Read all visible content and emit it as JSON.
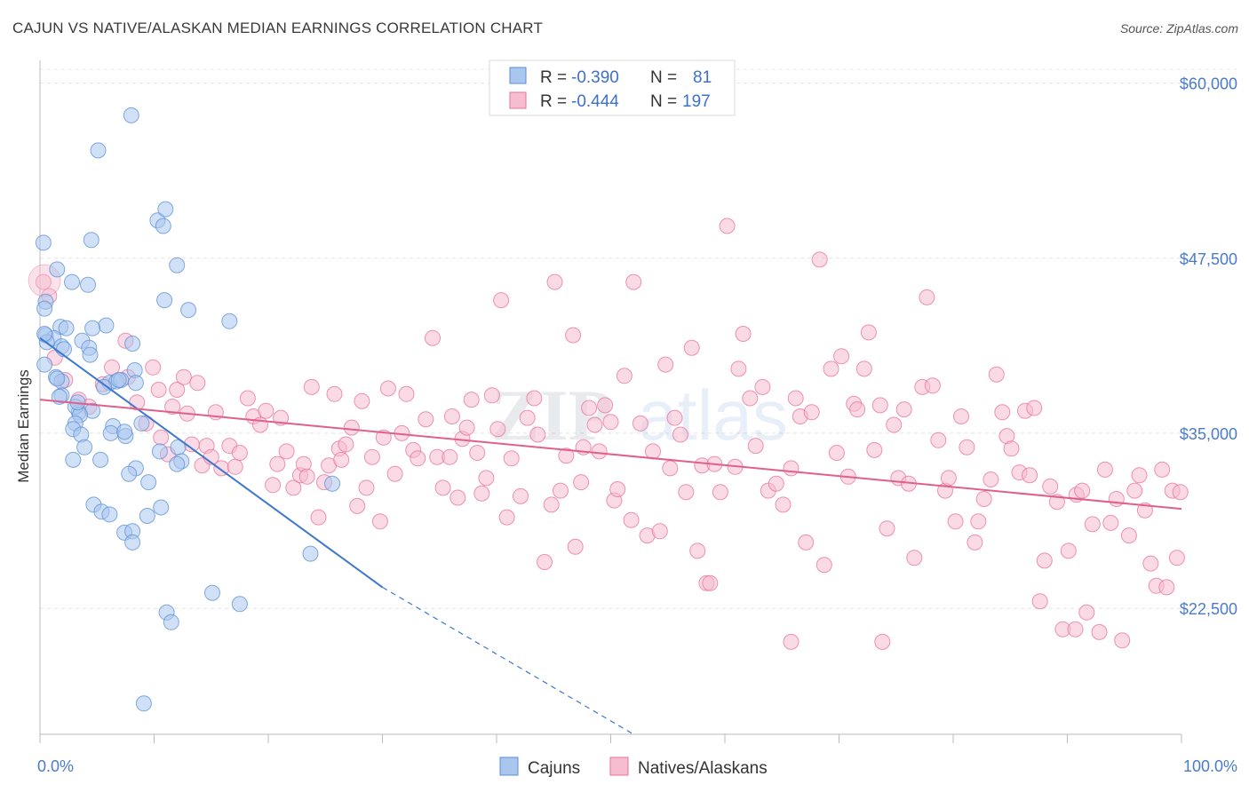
{
  "title": "CAJUN VS NATIVE/ALASKAN MEDIAN EARNINGS CORRELATION CHART",
  "source": "Source: ZipAtlas.com",
  "watermark": {
    "zip": "ZIP",
    "atlas": "atlas"
  },
  "colors": {
    "cajuns": "#5b8fd6",
    "cajuns_fill": "#a9c6ee",
    "natives": "#e8729a",
    "natives_fill": "#f6bcd0",
    "tick_text": "#4a7bcb"
  },
  "legend": {
    "r_label": "R =",
    "n_label": "N =",
    "rows": [
      {
        "r": "-0.390",
        "n": "81"
      },
      {
        "r": "-0.444",
        "n": "197"
      }
    ]
  },
  "bottom_legend": [
    "Cajuns",
    "Natives/Alaskans"
  ],
  "chart_data": {
    "type": "scatter",
    "title": "CAJUN VS NATIVE/ALASKAN MEDIAN EARNINGS CORRELATION CHART",
    "xlabel": "",
    "ylabel": "Median Earnings",
    "x_tick_labels": [
      "0.0%",
      "100.0%"
    ],
    "y_tick_labels": [
      "$60,000",
      "$47,500",
      "$35,000",
      "$22,500"
    ],
    "y_ticks": [
      60000,
      47500,
      35000,
      22500
    ],
    "xlim": [
      0,
      100
    ],
    "ylim": [
      13500,
      61500
    ],
    "grid": true,
    "legend_position": "top-center",
    "series": [
      {
        "name": "Cajuns",
        "r": -0.39,
        "n": 81,
        "trend": {
          "x": [
            0,
            30
          ],
          "y": [
            41800,
            24000
          ],
          "dashed_to": [
            52,
            13500
          ]
        },
        "points": [
          [
            8.0,
            57700
          ],
          [
            5.1,
            55200
          ],
          [
            0.3,
            48600
          ],
          [
            4.5,
            48800
          ],
          [
            10.3,
            50200
          ],
          [
            10.8,
            49800
          ],
          [
            11.0,
            51000
          ],
          [
            12.0,
            47000
          ],
          [
            1.5,
            46700
          ],
          [
            2.8,
            45800
          ],
          [
            4.2,
            45600
          ],
          [
            0.5,
            44400
          ],
          [
            0.4,
            43900
          ],
          [
            10.9,
            44500
          ],
          [
            13.0,
            43800
          ],
          [
            16.6,
            43000
          ],
          [
            0.5,
            42000
          ],
          [
            1.8,
            42600
          ],
          [
            2.3,
            42500
          ],
          [
            5.8,
            42700
          ],
          [
            4.6,
            42500
          ],
          [
            1.2,
            41800
          ],
          [
            0.6,
            41500
          ],
          [
            1.9,
            41200
          ],
          [
            3.7,
            41600
          ],
          [
            4.3,
            41100
          ],
          [
            8.1,
            41400
          ],
          [
            4.4,
            40600
          ],
          [
            0.4,
            39900
          ],
          [
            8.3,
            39500
          ],
          [
            1.4,
            39000
          ],
          [
            1.9,
            38700
          ],
          [
            6.1,
            38600
          ],
          [
            6.7,
            38700
          ],
          [
            7.1,
            38800
          ],
          [
            8.4,
            38600
          ],
          [
            5.6,
            38300
          ],
          [
            1.9,
            37700
          ],
          [
            1.7,
            37600
          ],
          [
            3.4,
            36500
          ],
          [
            3.1,
            36900
          ],
          [
            4.6,
            36600
          ],
          [
            3.5,
            36300
          ],
          [
            3.1,
            35700
          ],
          [
            2.9,
            35300
          ],
          [
            6.4,
            35500
          ],
          [
            6.2,
            35000
          ],
          [
            7.5,
            34800
          ],
          [
            8.9,
            35700
          ],
          [
            3.6,
            34900
          ],
          [
            3.9,
            34000
          ],
          [
            12.1,
            34000
          ],
          [
            2.9,
            33100
          ],
          [
            5.3,
            33100
          ],
          [
            12.4,
            33000
          ],
          [
            12.0,
            32800
          ],
          [
            8.4,
            32500
          ],
          [
            7.8,
            32100
          ],
          [
            9.5,
            31500
          ],
          [
            25.6,
            31400
          ],
          [
            4.7,
            29900
          ],
          [
            5.4,
            29400
          ],
          [
            6.1,
            29200
          ],
          [
            10.6,
            29700
          ],
          [
            9.4,
            29100
          ],
          [
            7.4,
            27900
          ],
          [
            8.1,
            28000
          ],
          [
            8.1,
            27200
          ],
          [
            23.7,
            26400
          ],
          [
            15.1,
            23600
          ],
          [
            17.5,
            22800
          ],
          [
            11.1,
            22200
          ],
          [
            11.5,
            21500
          ],
          [
            9.1,
            15700
          ],
          [
            0.4,
            42100
          ],
          [
            2.1,
            41000
          ],
          [
            6.9,
            38800
          ],
          [
            3.3,
            37200
          ],
          [
            1.5,
            38900
          ],
          [
            10.5,
            33700
          ],
          [
            7.4,
            35100
          ]
        ]
      },
      {
        "name": "Natives/Alaskans",
        "r": -0.444,
        "n": 197,
        "trend": {
          "x": [
            0,
            100
          ],
          "y": [
            37400,
            29600
          ]
        },
        "points": [
          [
            0.3,
            45800
          ],
          [
            0.8,
            44800
          ],
          [
            1.3,
            40400
          ],
          [
            2.2,
            38800
          ],
          [
            3.4,
            37400
          ],
          [
            4.3,
            36900
          ],
          [
            5.5,
            38500
          ],
          [
            6.3,
            39700
          ],
          [
            7.5,
            41600
          ],
          [
            7.7,
            39000
          ],
          [
            8.5,
            37200
          ],
          [
            9.3,
            35700
          ],
          [
            9.9,
            39700
          ],
          [
            10.4,
            38100
          ],
          [
            10.6,
            34700
          ],
          [
            11.2,
            33500
          ],
          [
            11.6,
            36900
          ],
          [
            12.0,
            38100
          ],
          [
            12.6,
            39000
          ],
          [
            12.9,
            36400
          ],
          [
            13.3,
            34200
          ],
          [
            13.8,
            38600
          ],
          [
            14.2,
            32700
          ],
          [
            14.6,
            34100
          ],
          [
            15.0,
            33300
          ],
          [
            15.4,
            36500
          ],
          [
            15.9,
            32500
          ],
          [
            16.6,
            34100
          ],
          [
            17.1,
            32600
          ],
          [
            17.5,
            33600
          ],
          [
            18.2,
            37500
          ],
          [
            18.7,
            36200
          ],
          [
            19.3,
            35600
          ],
          [
            19.8,
            36600
          ],
          [
            20.4,
            31300
          ],
          [
            20.8,
            32800
          ],
          [
            21.1,
            36100
          ],
          [
            21.6,
            33700
          ],
          [
            22.2,
            31100
          ],
          [
            22.8,
            32000
          ],
          [
            23.1,
            32800
          ],
          [
            23.4,
            31900
          ],
          [
            23.8,
            38300
          ],
          [
            24.4,
            29000
          ],
          [
            24.9,
            31500
          ],
          [
            25.3,
            32700
          ],
          [
            25.8,
            37800
          ],
          [
            26.2,
            33900
          ],
          [
            26.4,
            33100
          ],
          [
            26.8,
            34200
          ],
          [
            27.3,
            35400
          ],
          [
            27.8,
            29800
          ],
          [
            28.2,
            37300
          ],
          [
            28.6,
            31100
          ],
          [
            29.1,
            33300
          ],
          [
            29.8,
            28700
          ],
          [
            30.1,
            34700
          ],
          [
            30.5,
            38200
          ],
          [
            31.1,
            32100
          ],
          [
            31.7,
            35000
          ],
          [
            32.1,
            37800
          ],
          [
            32.7,
            33800
          ],
          [
            33.1,
            33200
          ],
          [
            33.8,
            36000
          ],
          [
            34.4,
            41800
          ],
          [
            34.8,
            33300
          ],
          [
            35.3,
            31100
          ],
          [
            35.9,
            33300
          ],
          [
            36.1,
            36200
          ],
          [
            36.6,
            30400
          ],
          [
            37.0,
            34600
          ],
          [
            37.4,
            35400
          ],
          [
            37.8,
            37400
          ],
          [
            38.3,
            33600
          ],
          [
            38.7,
            30700
          ],
          [
            39.1,
            31800
          ],
          [
            39.6,
            37700
          ],
          [
            40.1,
            35300
          ],
          [
            40.4,
            44500
          ],
          [
            40.9,
            29000
          ],
          [
            41.3,
            33200
          ],
          [
            42.1,
            30500
          ],
          [
            42.7,
            36100
          ],
          [
            43.3,
            37500
          ],
          [
            43.6,
            34900
          ],
          [
            44.2,
            25800
          ],
          [
            44.8,
            29900
          ],
          [
            45.1,
            45800
          ],
          [
            45.6,
            30900
          ],
          [
            46.1,
            33400
          ],
          [
            46.7,
            42000
          ],
          [
            46.9,
            26900
          ],
          [
            47.4,
            31500
          ],
          [
            47.6,
            34000
          ],
          [
            48.1,
            36800
          ],
          [
            48.6,
            35600
          ],
          [
            49.0,
            33700
          ],
          [
            49.5,
            37000
          ],
          [
            50.0,
            35800
          ],
          [
            50.3,
            30200
          ],
          [
            50.6,
            31000
          ],
          [
            51.2,
            39100
          ],
          [
            51.8,
            28800
          ],
          [
            52.0,
            45800
          ],
          [
            52.6,
            35700
          ],
          [
            53.2,
            27700
          ],
          [
            53.7,
            33700
          ],
          [
            54.3,
            28000
          ],
          [
            54.8,
            39900
          ],
          [
            55.2,
            32500
          ],
          [
            55.6,
            36100
          ],
          [
            56.1,
            34900
          ],
          [
            56.6,
            30800
          ],
          [
            57.1,
            41100
          ],
          [
            57.6,
            26600
          ],
          [
            58.0,
            32700
          ],
          [
            58.4,
            24300
          ],
          [
            58.7,
            24300
          ],
          [
            59.1,
            32800
          ],
          [
            59.6,
            30800
          ],
          [
            60.2,
            49800
          ],
          [
            60.9,
            32600
          ],
          [
            61.2,
            39600
          ],
          [
            61.6,
            42100
          ],
          [
            62.2,
            37500
          ],
          [
            62.7,
            34100
          ],
          [
            63.3,
            38300
          ],
          [
            63.8,
            30900
          ],
          [
            64.5,
            31400
          ],
          [
            65.1,
            29900
          ],
          [
            65.8,
            32500
          ],
          [
            66.2,
            37500
          ],
          [
            66.6,
            36200
          ],
          [
            67.1,
            27200
          ],
          [
            67.6,
            36500
          ],
          [
            68.3,
            47400
          ],
          [
            68.7,
            25600
          ],
          [
            69.3,
            39600
          ],
          [
            69.8,
            33600
          ],
          [
            70.2,
            40500
          ],
          [
            70.8,
            31900
          ],
          [
            71.3,
            37100
          ],
          [
            71.6,
            36700
          ],
          [
            72.2,
            39600
          ],
          [
            72.6,
            42200
          ],
          [
            73.1,
            33800
          ],
          [
            73.6,
            37000
          ],
          [
            74.2,
            28200
          ],
          [
            74.8,
            35600
          ],
          [
            75.2,
            31800
          ],
          [
            75.7,
            36700
          ],
          [
            76.1,
            31400
          ],
          [
            76.6,
            26100
          ],
          [
            77.3,
            38300
          ],
          [
            77.7,
            44700
          ],
          [
            78.2,
            38400
          ],
          [
            78.7,
            34500
          ],
          [
            79.3,
            30900
          ],
          [
            79.6,
            31800
          ],
          [
            80.2,
            28700
          ],
          [
            80.7,
            36200
          ],
          [
            81.2,
            34000
          ],
          [
            81.9,
            27200
          ],
          [
            82.2,
            28700
          ],
          [
            82.7,
            30300
          ],
          [
            83.3,
            31700
          ],
          [
            83.8,
            39200
          ],
          [
            84.3,
            36500
          ],
          [
            84.7,
            34800
          ],
          [
            85.1,
            33900
          ],
          [
            85.8,
            32200
          ],
          [
            86.3,
            36600
          ],
          [
            86.7,
            32000
          ],
          [
            87.1,
            36800
          ],
          [
            87.6,
            23000
          ],
          [
            88.0,
            25900
          ],
          [
            88.5,
            31200
          ],
          [
            89.1,
            30100
          ],
          [
            89.6,
            21000
          ],
          [
            90.1,
            26600
          ],
          [
            90.8,
            30600
          ],
          [
            91.3,
            30900
          ],
          [
            91.7,
            22200
          ],
          [
            92.2,
            28500
          ],
          [
            92.8,
            20800
          ],
          [
            93.3,
            32400
          ],
          [
            93.8,
            28600
          ],
          [
            94.3,
            30300
          ],
          [
            94.8,
            20200
          ],
          [
            95.4,
            27700
          ],
          [
            95.9,
            30900
          ],
          [
            96.3,
            32000
          ],
          [
            96.8,
            29500
          ],
          [
            97.3,
            25700
          ],
          [
            97.8,
            24100
          ],
          [
            98.3,
            32400
          ],
          [
            98.7,
            24000
          ],
          [
            99.2,
            30900
          ],
          [
            99.6,
            26100
          ],
          [
            99.9,
            30800
          ],
          [
            65.8,
            20100
          ],
          [
            73.8,
            20100
          ],
          [
            90.7,
            21000
          ]
        ]
      }
    ]
  }
}
